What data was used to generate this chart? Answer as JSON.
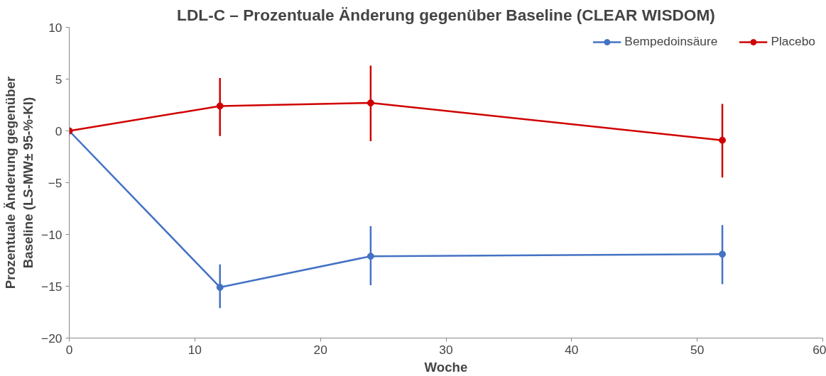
{
  "chart_data": {
    "type": "line",
    "title": "LDL-C – Prozentuale Änderung gegenüber Baseline (CLEAR WISDOM)",
    "xlabel": "Woche",
    "ylabel": "Prozentuale Änderung gegenüber Baseline (LS-MW± 95-%-KI)",
    "x": [
      0,
      12,
      24,
      52
    ],
    "series": [
      {
        "name": "Bempedoinsäure",
        "color": "#4472c4",
        "values": [
          0,
          -15.1,
          -12.1,
          -11.9
        ],
        "errors": [
          null,
          [
            -17.1,
            -12.9
          ],
          [
            -14.9,
            -9.2
          ],
          [
            -14.8,
            -9.1
          ]
        ]
      },
      {
        "name": "Placebo",
        "color": "#d00000",
        "values": [
          0,
          2.4,
          2.7,
          -0.9
        ],
        "errors": [
          null,
          [
            -0.5,
            5.1
          ],
          [
            -1.0,
            6.3
          ],
          [
            -4.5,
            2.6
          ]
        ]
      }
    ],
    "xlim": [
      0,
      60
    ],
    "xticks": [
      0,
      10,
      20,
      30,
      40,
      50,
      60
    ],
    "ylim": [
      -20,
      10
    ],
    "yticks": [
      -20,
      -15,
      -10,
      -5,
      0,
      5,
      10
    ],
    "grid": false,
    "legend": "top right",
    "marker": "circle",
    "line_style": "solid"
  }
}
